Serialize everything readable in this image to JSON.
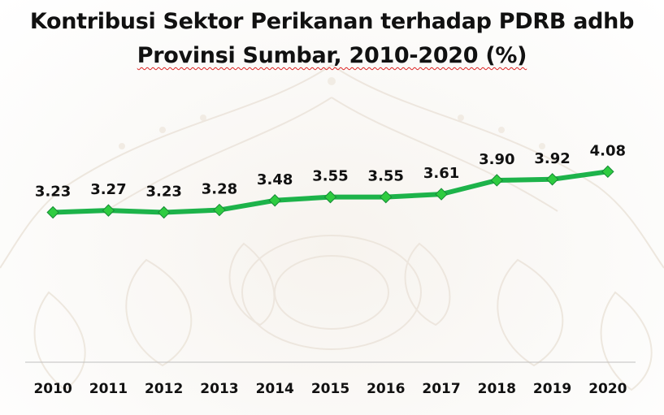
{
  "chart_data": {
    "type": "line",
    "title_line1": "Kontribusi Sektor Perikanan terhadap PDRB adhb",
    "title_line2": "Provinsi Sumbar, 2010-2020 (%)",
    "x": [
      "2010",
      "2011",
      "2012",
      "2013",
      "2014",
      "2015",
      "2016",
      "2017",
      "2018",
      "2019",
      "2020"
    ],
    "series": [
      {
        "values": [
          3.23,
          3.27,
          3.23,
          3.28,
          3.48,
          3.55,
          3.55,
          3.61,
          3.9,
          3.92,
          4.08
        ],
        "labels": [
          "3.23",
          "3.27",
          "3.23",
          "3.28",
          "3.48",
          "3.55",
          "3.55",
          "3.61",
          "3.90",
          "3.92",
          "4.08"
        ],
        "color": "#1db34a",
        "marker_color": "#2ecc40"
      }
    ],
    "xlabel": "",
    "ylabel": "",
    "grid": false,
    "data_labels": true,
    "axis_color": "#bfbfbf"
  }
}
